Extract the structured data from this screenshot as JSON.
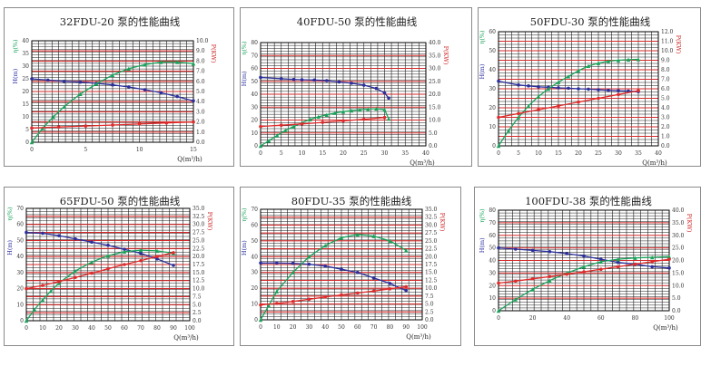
{
  "colors": {
    "grid_black": "#1a1a1a",
    "grid_red": "#d42a2a",
    "axis_left": "#2b2fa0",
    "axis_right": "#cc2222",
    "head": "#2b2f9c",
    "eff": "#19a35a",
    "power": "#e02b2b"
  },
  "chart_data": [
    {
      "type": "line",
      "title": "32FDU-20 泵的性能曲线",
      "xlabel": "Q(m³/h)",
      "ylabel_left_h": "H(m)",
      "ylabel_left_eta": "η(%)",
      "ylabel_right": "P(KW)",
      "xlim": [
        0,
        15
      ],
      "ylim_left": [
        0,
        40
      ],
      "ylim_right": [
        0,
        10
      ],
      "x_ticks": [
        "0",
        "5",
        "10",
        "15"
      ],
      "y_left_ticks": [
        "0",
        "5",
        "10",
        "15",
        "20",
        "25",
        "30",
        "35",
        "40"
      ],
      "y_right_ticks": [
        "0.0",
        "1.0",
        "2.0",
        "3.0",
        "4.0",
        "5.0",
        "6.0",
        "7.0",
        "8.0",
        "9.0",
        "10.0"
      ],
      "series": [
        {
          "key": "head",
          "points": [
            [
              0,
              25
            ],
            [
              1.5,
              24.5
            ],
            [
              3,
              24
            ],
            [
              4.5,
              23.7
            ],
            [
              6,
              23.2
            ],
            [
              7.5,
              22.6
            ],
            [
              9,
              21.8
            ],
            [
              10.5,
              20.7
            ],
            [
              12,
              19.5
            ],
            [
              13.5,
              18
            ],
            [
              15,
              16.3
            ]
          ]
        },
        {
          "key": "eff",
          "points": [
            [
              0,
              0
            ],
            [
              1,
              5.5
            ],
            [
              2,
              10
            ],
            [
              3,
              14
            ],
            [
              4.5,
              19
            ],
            [
              6,
              23
            ],
            [
              7.5,
              26.5
            ],
            [
              9,
              29
            ],
            [
              10.5,
              30.6
            ],
            [
              12,
              31.6
            ],
            [
              13.5,
              31.6
            ],
            [
              15,
              31
            ]
          ]
        },
        {
          "key": "power",
          "points": [
            [
              0,
              1.4
            ],
            [
              2.5,
              1.5
            ],
            [
              5,
              1.6
            ],
            [
              7.5,
              1.7
            ],
            [
              10,
              1.8
            ],
            [
              12.5,
              1.9
            ],
            [
              15,
              2.0
            ]
          ]
        }
      ]
    },
    {
      "type": "line",
      "title": "40FDU-50 泵的性能曲线",
      "xlabel": "Q(m³/h)",
      "ylabel_left_h": "H(m)",
      "ylabel_left_eta": "η(%)",
      "ylabel_right": "P(KW)",
      "xlim": [
        0,
        40
      ],
      "ylim_left": [
        0,
        80
      ],
      "ylim_right": [
        0,
        40
      ],
      "x_ticks": [
        "0",
        "5",
        "10",
        "15",
        "20",
        "25",
        "30",
        "35",
        "40"
      ],
      "y_left_ticks": [
        "0",
        "10",
        "20",
        "30",
        "40",
        "50",
        "60",
        "70",
        "80"
      ],
      "y_right_ticks": [
        "0.0",
        "5.0",
        "10.0",
        "15.0",
        "20.0",
        "25.0",
        "30.0",
        "35.0",
        "40.0"
      ],
      "series": [
        {
          "key": "head",
          "points": [
            [
              0,
              53
            ],
            [
              5,
              52
            ],
            [
              8,
              51.5
            ],
            [
              10,
              51.2
            ],
            [
              13,
              51
            ],
            [
              16,
              50.5
            ],
            [
              19,
              49.5
            ],
            [
              22,
              48.5
            ],
            [
              25,
              47
            ],
            [
              28,
              44.5
            ],
            [
              30,
              41
            ],
            [
              31,
              37
            ]
          ]
        },
        {
          "key": "eff",
          "points": [
            [
              0,
              0
            ],
            [
              2,
              4
            ],
            [
              4,
              8
            ],
            [
              6,
              12
            ],
            [
              8,
              15
            ],
            [
              10,
              18
            ],
            [
              12,
              20.5
            ],
            [
              14,
              22.5
            ],
            [
              16,
              24
            ],
            [
              18,
              25.5
            ],
            [
              20,
              26.5
            ],
            [
              22,
              27.3
            ],
            [
              24,
              28
            ],
            [
              26,
              28.5
            ],
            [
              28,
              28.8
            ],
            [
              30,
              28
            ],
            [
              31,
              21
            ]
          ]
        },
        {
          "key": "power",
          "points": [
            [
              0,
              7.5
            ],
            [
              5,
              8
            ],
            [
              10,
              8.5
            ],
            [
              15,
              9.1
            ],
            [
              20,
              9.7
            ],
            [
              25,
              10.3
            ],
            [
              30,
              11
            ]
          ]
        }
      ]
    },
    {
      "type": "line",
      "title": "50FDU-30 泵的性能曲线",
      "xlabel": "Q(m³/h)",
      "ylabel_left_h": "H(m)",
      "ylabel_left_eta": "η(%)",
      "ylabel_right": "P(KW)",
      "xlim": [
        0,
        40
      ],
      "ylim_left": [
        0,
        60
      ],
      "ylim_right": [
        0,
        12
      ],
      "x_ticks": [
        "0",
        "5",
        "10",
        "15",
        "20",
        "25",
        "30",
        "35",
        "40"
      ],
      "y_left_ticks": [
        "0",
        "10",
        "20",
        "30",
        "40",
        "50",
        "60"
      ],
      "y_right_ticks": [
        "0.0",
        "1.0",
        "2.0",
        "3.0",
        "4.0",
        "5.0",
        "6.0",
        "7.0",
        "8.0",
        "9.0",
        "10.0",
        "11.0",
        "12.0"
      ],
      "series": [
        {
          "key": "head",
          "points": [
            [
              0,
              34
            ],
            [
              5,
              32
            ],
            [
              7.5,
              31.5
            ],
            [
              10,
              31
            ],
            [
              12.5,
              30.8
            ],
            [
              15,
              30.5
            ],
            [
              17.5,
              30.3
            ],
            [
              20,
              30
            ],
            [
              22.5,
              29.8
            ],
            [
              25,
              29.5
            ],
            [
              27.5,
              29.2
            ],
            [
              30,
              29
            ],
            [
              32.5,
              28.8
            ],
            [
              35,
              28.5
            ]
          ]
        },
        {
          "key": "eff",
          "points": [
            [
              0,
              0
            ],
            [
              2.5,
              8
            ],
            [
              5,
              15
            ],
            [
              7.5,
              21
            ],
            [
              10,
              26
            ],
            [
              12.5,
              30
            ],
            [
              15,
              33.5
            ],
            [
              17.5,
              36.5
            ],
            [
              20,
              39.5
            ],
            [
              22.5,
              42
            ],
            [
              25,
              43.5
            ],
            [
              27.5,
              44.5
            ],
            [
              30,
              45
            ],
            [
              32.5,
              45.3
            ],
            [
              35,
              45.5
            ]
          ]
        },
        {
          "key": "power",
          "points": [
            [
              0,
              3.0
            ],
            [
              5,
              3.4
            ],
            [
              10,
              3.8
            ],
            [
              15,
              4.2
            ],
            [
              20,
              4.6
            ],
            [
              25,
              5.0
            ],
            [
              30,
              5.4
            ],
            [
              35,
              5.8
            ]
          ]
        }
      ]
    },
    {
      "type": "line",
      "title": "65FDU-50 泵的性能曲线",
      "xlabel": "Q(m³/h)",
      "ylabel_left_h": "H(m)",
      "ylabel_left_eta": "η(%)",
      "ylabel_right": "P(KW)",
      "xlim": [
        0,
        100
      ],
      "ylim_left": [
        0,
        70
      ],
      "ylim_right": [
        0,
        35
      ],
      "x_ticks": [
        "0",
        "10",
        "20",
        "30",
        "40",
        "50",
        "60",
        "70",
        "80",
        "90",
        "100"
      ],
      "y_left_ticks": [
        "0",
        "10",
        "20",
        "30",
        "40",
        "50",
        "60",
        "70"
      ],
      "y_right_ticks": [
        "0.0",
        "2.5",
        "5.0",
        "7.5",
        "10.0",
        "12.5",
        "15.0",
        "17.5",
        "20.0",
        "22.5",
        "25.0",
        "27.5",
        "30.0",
        "32.5",
        "35.0"
      ],
      "series": [
        {
          "key": "head",
          "points": [
            [
              0,
              55
            ],
            [
              10,
              54.5
            ],
            [
              20,
              53
            ],
            [
              30,
              51
            ],
            [
              40,
              49
            ],
            [
              50,
              47
            ],
            [
              60,
              44.5
            ],
            [
              70,
              42
            ],
            [
              80,
              38.5
            ],
            [
              90,
              34.5
            ]
          ]
        },
        {
          "key": "eff",
          "points": [
            [
              0,
              0
            ],
            [
              5,
              7
            ],
            [
              10,
              13
            ],
            [
              15,
              18.5
            ],
            [
              20,
              23.5
            ],
            [
              30,
              31
            ],
            [
              40,
              36.5
            ],
            [
              50,
              40.5
            ],
            [
              60,
              43
            ],
            [
              70,
              44
            ],
            [
              80,
              43.5
            ],
            [
              90,
              42
            ]
          ]
        },
        {
          "key": "power",
          "points": [
            [
              0,
              10
            ],
            [
              10,
              11
            ],
            [
              20,
              12.2
            ],
            [
              30,
              13.5
            ],
            [
              40,
              14.8
            ],
            [
              50,
              16.2
            ],
            [
              60,
              17.5
            ],
            [
              70,
              18.7
            ],
            [
              80,
              20
            ],
            [
              90,
              21.2
            ]
          ]
        }
      ]
    },
    {
      "type": "line",
      "title": "80FDU-35 泵的性能曲线",
      "xlabel": "Q(m³/h)",
      "ylabel_left_h": "H(m)",
      "ylabel_left_eta": "η(%)",
      "ylabel_right": "P(KW)",
      "xlim": [
        0,
        100
      ],
      "ylim_left": [
        0,
        70
      ],
      "ylim_right": [
        0,
        35
      ],
      "x_ticks": [
        "0",
        "10",
        "20",
        "30",
        "40",
        "50",
        "60",
        "70",
        "80",
        "90",
        "100"
      ],
      "y_left_ticks": [
        "0",
        "10",
        "20",
        "30",
        "40",
        "50",
        "60",
        "70"
      ],
      "y_right_ticks": [
        "0.0",
        "2.5",
        "5.0",
        "7.5",
        "10.0",
        "12.5",
        "15.0",
        "17.5",
        "20.0",
        "22.5",
        "25.0",
        "27.5",
        "30.0",
        "32.5",
        "35.0"
      ],
      "series": [
        {
          "key": "head",
          "points": [
            [
              0,
              36
            ],
            [
              10,
              36
            ],
            [
              20,
              35.8
            ],
            [
              30,
              35.2
            ],
            [
              40,
              34
            ],
            [
              50,
              32
            ],
            [
              60,
              30
            ],
            [
              70,
              26.5
            ],
            [
              80,
              23
            ],
            [
              90,
              18.5
            ]
          ]
        },
        {
          "key": "eff",
          "points": [
            [
              0,
              0
            ],
            [
              5,
              9
            ],
            [
              10,
              18
            ],
            [
              20,
              30
            ],
            [
              30,
              40
            ],
            [
              40,
              47
            ],
            [
              50,
              52
            ],
            [
              60,
              54
            ],
            [
              70,
              53
            ],
            [
              80,
              50
            ],
            [
              90,
              44
            ]
          ]
        },
        {
          "key": "power",
          "points": [
            [
              0,
              4.7
            ],
            [
              10,
              5.2
            ],
            [
              20,
              5.8
            ],
            [
              30,
              6.5
            ],
            [
              40,
              7.2
            ],
            [
              50,
              7.9
            ],
            [
              60,
              8.5
            ],
            [
              70,
              9.1
            ],
            [
              80,
              9.8
            ],
            [
              90,
              10.5
            ]
          ]
        }
      ]
    },
    {
      "type": "line",
      "title": "100FDU-38 泵的性能曲线",
      "xlabel": "Q(m³/h)",
      "ylabel_left_h": "H(m)",
      "ylabel_left_eta": "η(%)",
      "ylabel_right": "P(KW)",
      "xlim": [
        0,
        100
      ],
      "ylim_left": [
        0,
        80
      ],
      "ylim_right": [
        0,
        40
      ],
      "x_ticks": [
        "0",
        "20",
        "40",
        "60",
        "80",
        "100"
      ],
      "y_left_ticks": [
        "0",
        "10",
        "20",
        "30",
        "40",
        "50",
        "60",
        "70",
        "80"
      ],
      "y_right_ticks": [
        "0.0",
        "5.0",
        "10.0",
        "15.0",
        "20.0",
        "25.0",
        "30.0",
        "35.0",
        "40.0"
      ],
      "series": [
        {
          "key": "head",
          "points": [
            [
              0,
              50
            ],
            [
              10,
              49
            ],
            [
              20,
              48
            ],
            [
              30,
              47
            ],
            [
              40,
              45.5
            ],
            [
              50,
              43.5
            ],
            [
              60,
              41
            ],
            [
              70,
              38.5
            ],
            [
              80,
              37
            ],
            [
              90,
              35
            ],
            [
              100,
              34
            ]
          ]
        },
        {
          "key": "eff",
          "points": [
            [
              0,
              0
            ],
            [
              10,
              9
            ],
            [
              20,
              17
            ],
            [
              30,
              24
            ],
            [
              40,
              30
            ],
            [
              50,
              35
            ],
            [
              60,
              39
            ],
            [
              70,
              41
            ],
            [
              80,
              42
            ],
            [
              90,
              42.5
            ],
            [
              100,
              43
            ]
          ]
        },
        {
          "key": "power",
          "points": [
            [
              0,
              11
            ],
            [
              10,
              11.8
            ],
            [
              20,
              12.7
            ],
            [
              30,
              13.6
            ],
            [
              40,
              14.5
            ],
            [
              50,
              15.5
            ],
            [
              60,
              16.5
            ],
            [
              70,
              17.5
            ],
            [
              80,
              18.5
            ],
            [
              90,
              19.5
            ],
            [
              100,
              20.5
            ]
          ]
        }
      ]
    }
  ]
}
